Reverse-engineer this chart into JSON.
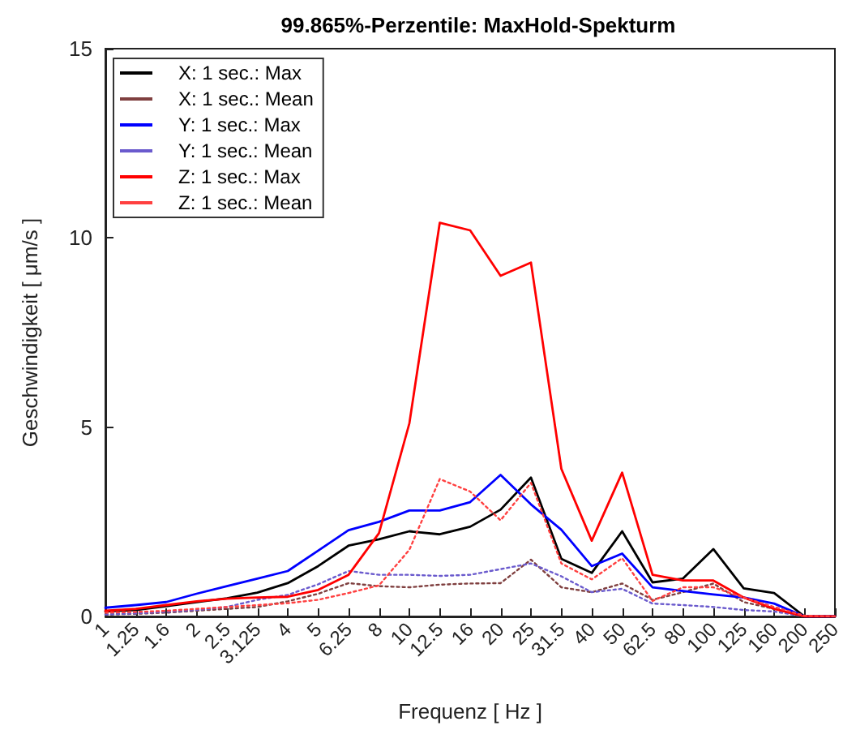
{
  "chart_data": {
    "type": "line",
    "title": "99.865%-Perzentile: MaxHold-Spekturm",
    "xlabel": "Frequenz [ Hz ]",
    "ylabel": "Geschwindigkeit [ μm/s ]",
    "categories": [
      "1",
      "1.25",
      "1.6",
      "2",
      "2.5",
      "3.125",
      "4",
      "5",
      "6.25",
      "8",
      "10",
      "12.5",
      "16",
      "20",
      "25",
      "31.5",
      "40",
      "50",
      "62.5",
      "80",
      "100",
      "125",
      "160",
      "200",
      "250"
    ],
    "series": [
      {
        "name": "X: 1 sec.: Max",
        "color": "#000000",
        "line_style": "solid",
        "values": [
          0.13,
          0.17,
          0.27,
          0.38,
          0.48,
          0.63,
          0.88,
          1.33,
          1.87,
          2.04,
          2.25,
          2.17,
          2.37,
          2.82,
          3.67,
          1.52,
          1.15,
          2.25,
          0.9,
          1.0,
          1.78,
          0.74,
          0.62,
          0,
          0
        ]
      },
      {
        "name": "X: 1 sec.: Mean",
        "color": "#7f3f3f",
        "line_style": "dotted",
        "values": [
          0.05,
          0.07,
          0.1,
          0.15,
          0.2,
          0.25,
          0.4,
          0.6,
          0.88,
          0.8,
          0.77,
          0.84,
          0.87,
          0.88,
          1.5,
          0.77,
          0.64,
          0.87,
          0.44,
          0.64,
          0.87,
          0.38,
          0.2,
          0,
          0
        ]
      },
      {
        "name": "Y: 1 sec.: Max",
        "color": "#0000ff",
        "line_style": "solid",
        "values": [
          0.23,
          0.3,
          0.38,
          0.6,
          0.8,
          1.0,
          1.2,
          1.74,
          2.28,
          2.5,
          2.8,
          2.8,
          3.02,
          3.74,
          2.96,
          2.29,
          1.33,
          1.66,
          0.77,
          0.67,
          0.58,
          0.5,
          0.34,
          0,
          0
        ]
      },
      {
        "name": "Y: 1 sec.: Mean",
        "color": "#6a5acd",
        "line_style": "dotted",
        "values": [
          0.05,
          0.08,
          0.12,
          0.17,
          0.25,
          0.44,
          0.57,
          0.85,
          1.2,
          1.1,
          1.1,
          1.07,
          1.1,
          1.25,
          1.4,
          1.06,
          0.64,
          0.73,
          0.34,
          0.3,
          0.25,
          0.17,
          0.13,
          0,
          0
        ]
      },
      {
        "name": "Z: 1 sec.: Max",
        "color": "#ff0000",
        "line_style": "solid",
        "values": [
          0.15,
          0.2,
          0.3,
          0.4,
          0.47,
          0.5,
          0.52,
          0.7,
          1.1,
          2.2,
          5.1,
          10.4,
          10.2,
          9.0,
          9.35,
          3.9,
          2.0,
          3.8,
          1.1,
          0.95,
          0.95,
          0.5,
          0.2,
          0,
          0
        ]
      },
      {
        "name": "Z: 1 sec.: Mean",
        "color": "#ff4040",
        "line_style": "dotted",
        "values": [
          0.1,
          0.12,
          0.15,
          0.2,
          0.25,
          0.3,
          0.35,
          0.44,
          0.62,
          0.82,
          1.76,
          3.63,
          3.3,
          2.54,
          3.53,
          1.4,
          0.98,
          1.54,
          0.41,
          0.77,
          0.77,
          0.5,
          0.25,
          0.02,
          0
        ]
      }
    ],
    "ylim": [
      0,
      15
    ],
    "yticks": [
      0,
      5,
      10,
      15
    ],
    "grid": false,
    "legend": "top left",
    "marker": "none"
  }
}
